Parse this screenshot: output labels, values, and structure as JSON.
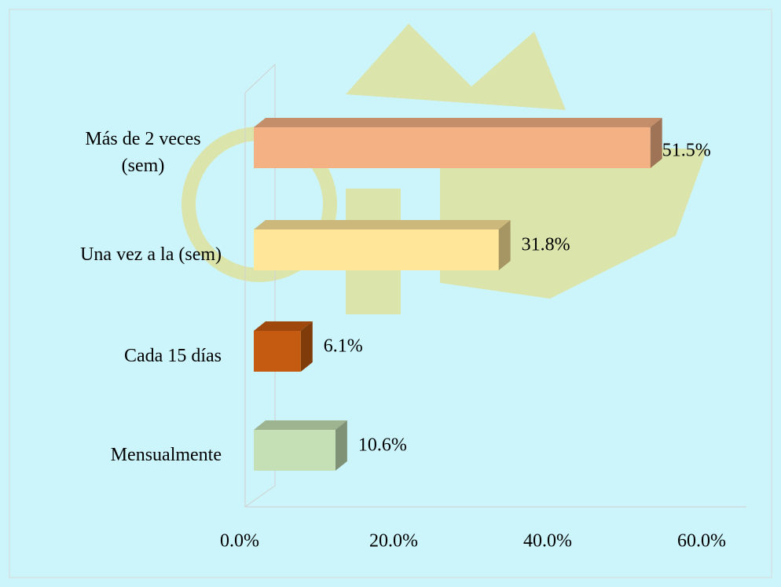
{
  "chart_data": {
    "type": "bar",
    "orientation": "horizontal",
    "categories": [
      "Más de 2 veces (sem)",
      "Una vez a la (sem)",
      "Cada 15 días",
      "Mensualmente"
    ],
    "values": [
      51.5,
      31.8,
      6.1,
      10.6
    ],
    "value_labels": [
      "51.5%",
      "31.8%",
      "6.1%",
      "10.6%"
    ],
    "colors": [
      "#f4b183",
      "#ffe699",
      "#c55a11",
      "#c5e0b4"
    ],
    "xlim": [
      0,
      60
    ],
    "xticks": [
      {
        "value": 0,
        "label": "0.0%"
      },
      {
        "value": 20,
        "label": "20.0%"
      },
      {
        "value": 40,
        "label": "40.0%"
      },
      {
        "value": 60,
        "label": "60.0%"
      }
    ]
  }
}
